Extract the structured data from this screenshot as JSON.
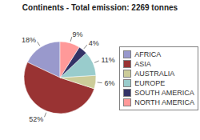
{
  "chart_data": {
    "type": "pie",
    "title": "Continents - Total emission: 2269 tonnes",
    "categories": [
      "AFRICA",
      "ASIA",
      "AUSTRALIA",
      "EUROPE",
      "SOUTH AMERICA",
      "NORTH AMERICA"
    ],
    "values": [
      18,
      52,
      6,
      11,
      4,
      9
    ],
    "value_labels": [
      "18%",
      "52%",
      "6%",
      "11%",
      "4%",
      "9%"
    ],
    "colors": [
      "#9999cc",
      "#993333",
      "#cccc99",
      "#99cccc",
      "#333366",
      "#ff9999"
    ],
    "data_labels": true,
    "legend": "right"
  }
}
